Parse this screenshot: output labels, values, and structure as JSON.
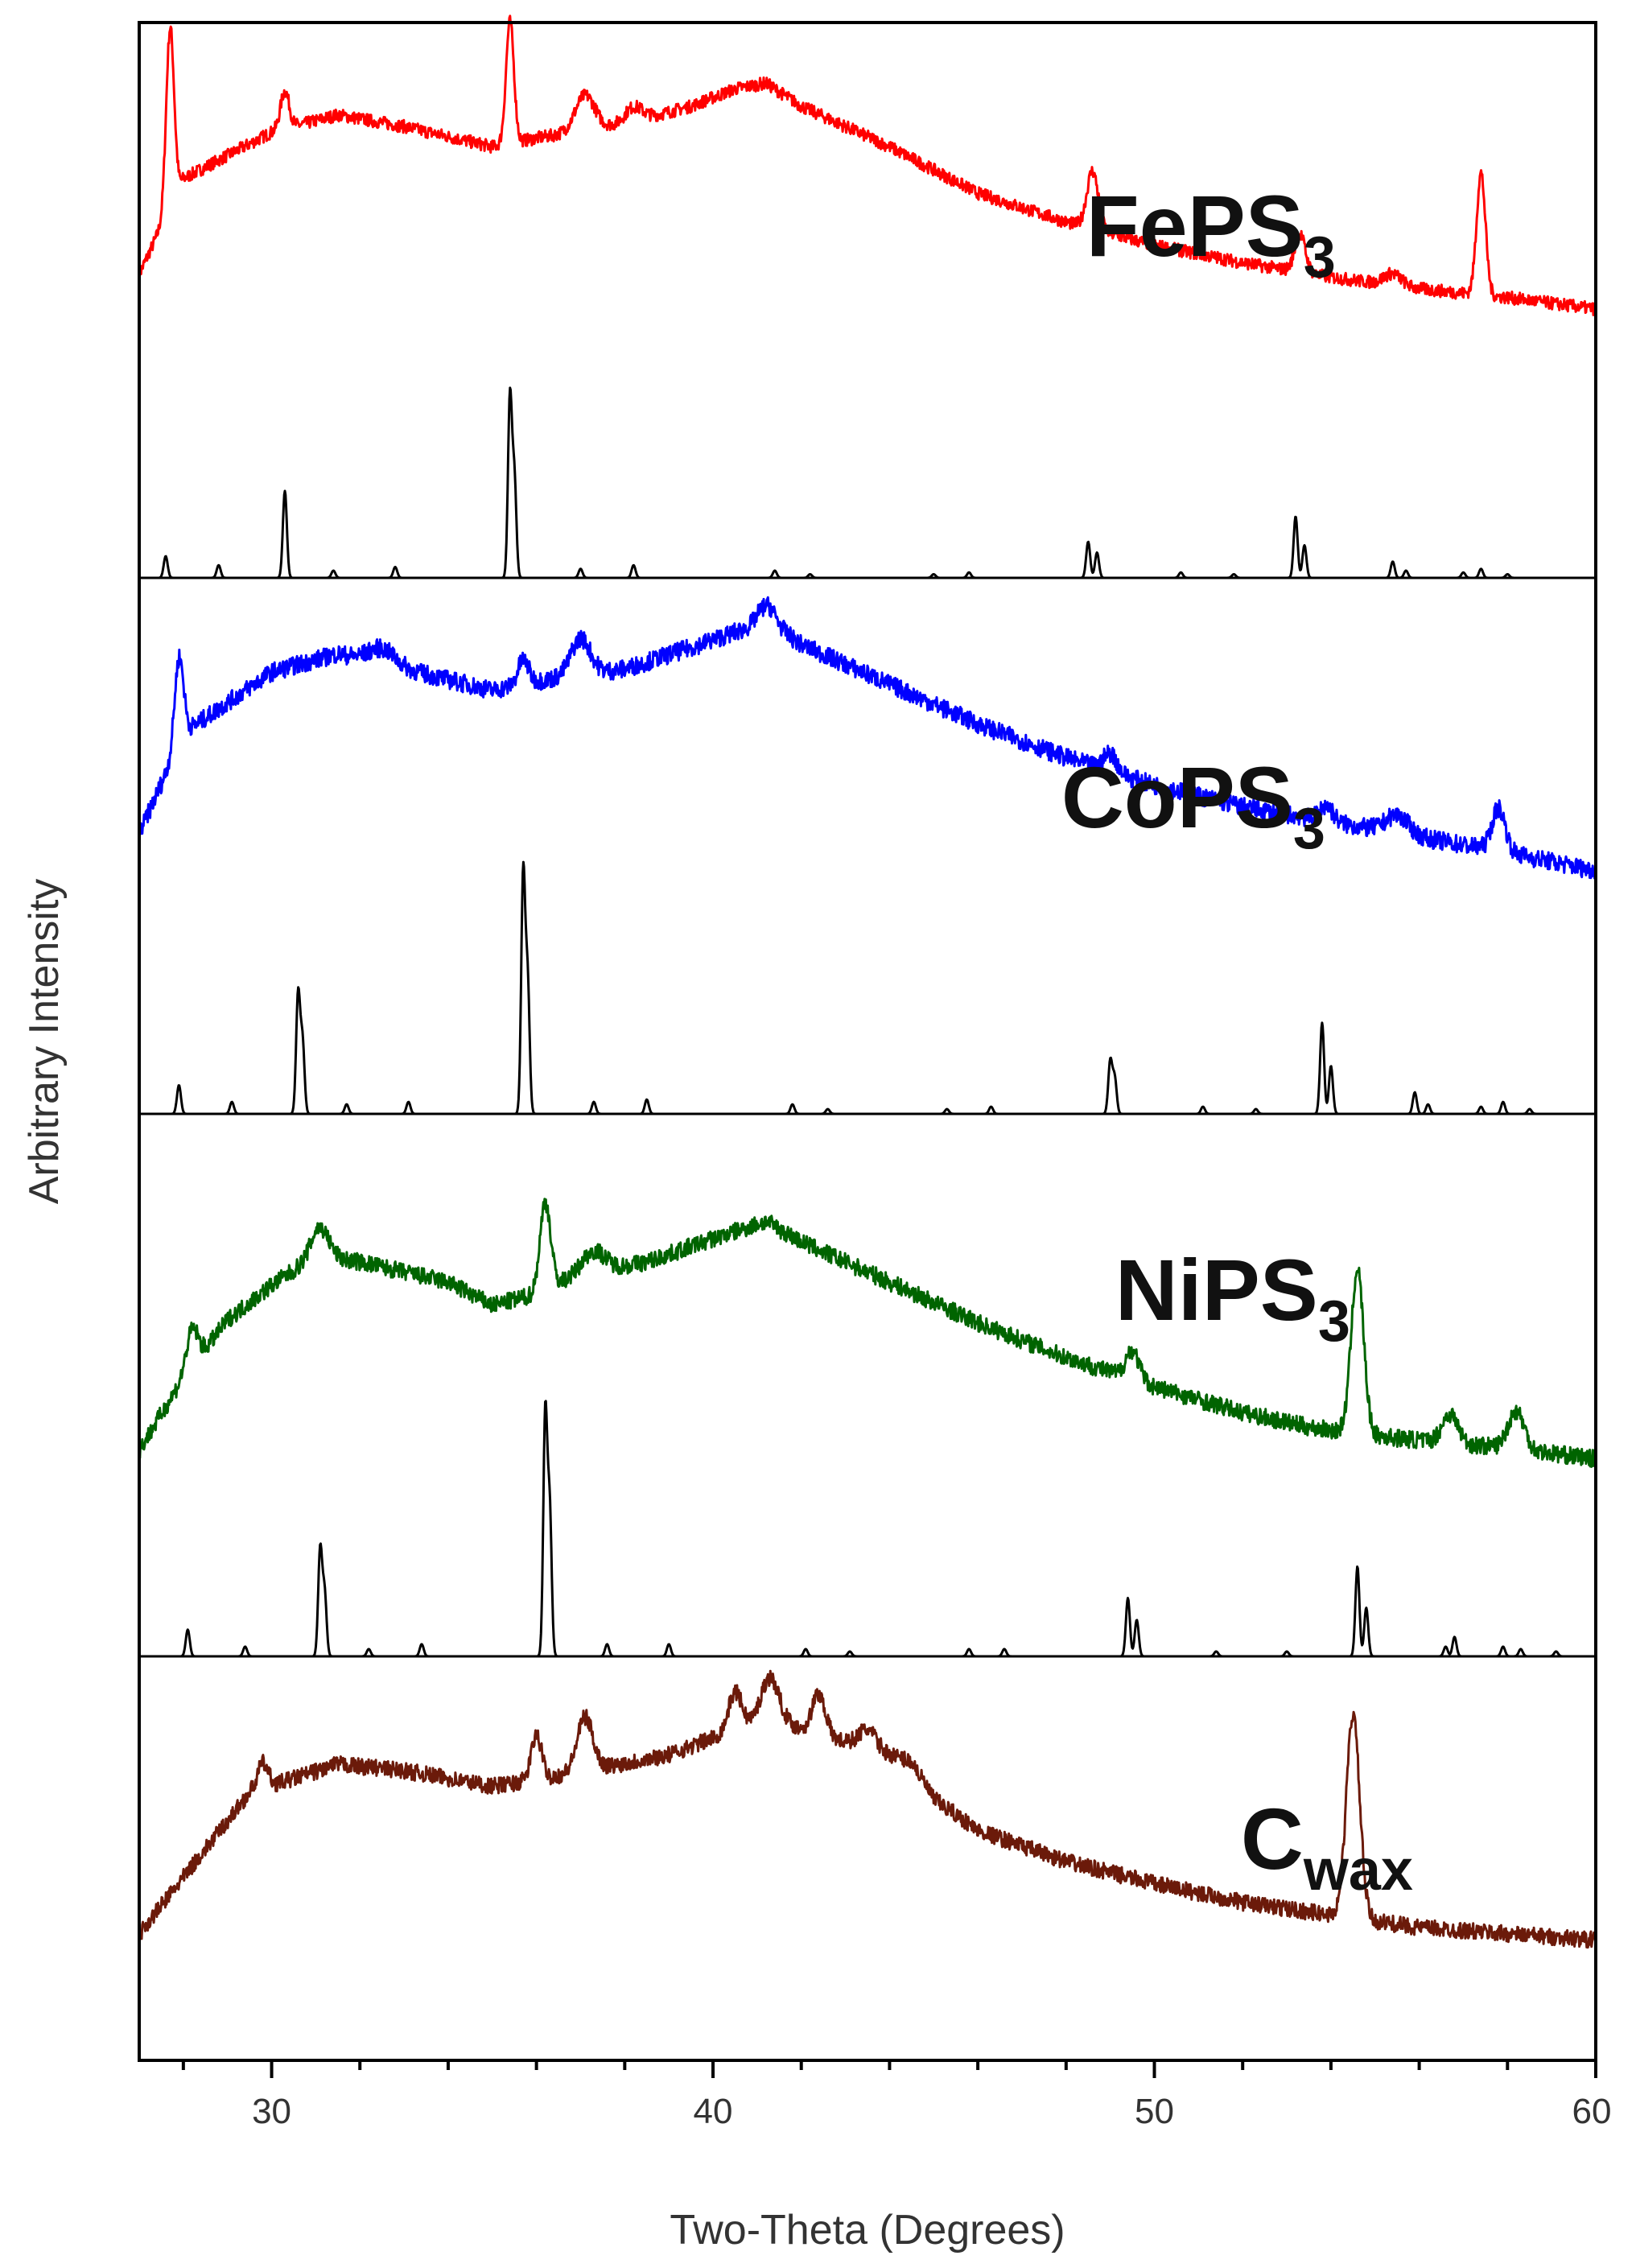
{
  "chart_data": {
    "type": "line",
    "title": "",
    "xlabel": "Two-Theta (Degrees)",
    "ylabel": "Arbitrary Intensity",
    "xlim": [
      27,
      60
    ],
    "x_ticks": [
      "30",
      "40",
      "50",
      "60"
    ],
    "y_ticks": [],
    "grid": false,
    "legend": "none",
    "series": [
      {
        "name": "FePS3",
        "label_main": "FePS",
        "label_sub": "3",
        "color": "#ff0000",
        "kind": "measured",
        "background": [
          [
            27,
            0.22
          ],
          [
            28,
            0.55
          ],
          [
            30,
            0.71
          ],
          [
            31.5,
            0.77
          ],
          [
            33,
            0.73
          ],
          [
            35,
            0.66
          ],
          [
            36,
            0.69
          ],
          [
            38,
            0.74
          ],
          [
            39.5,
            0.8
          ],
          [
            40.5,
            0.86
          ],
          [
            41.2,
            0.88
          ],
          [
            42,
            0.8
          ],
          [
            44,
            0.66
          ],
          [
            46,
            0.5
          ],
          [
            48,
            0.4
          ],
          [
            50,
            0.32
          ],
          [
            52,
            0.26
          ],
          [
            54,
            0.21
          ],
          [
            56,
            0.17
          ],
          [
            58,
            0.14
          ],
          [
            60,
            0.1
          ]
        ],
        "peaks": [
          [
            27.7,
            0.62,
            0.09
          ],
          [
            30.3,
            0.13,
            0.1
          ],
          [
            35.4,
            0.42,
            0.09
          ],
          [
            37.1,
            0.12,
            0.22
          ],
          [
            38.2,
            0.05,
            0.2
          ],
          [
            48.6,
            0.2,
            0.13
          ],
          [
            53.3,
            0.13,
            0.12
          ],
          [
            55.4,
            0.04,
            0.2
          ],
          [
            57.4,
            0.42,
            0.1
          ]
        ],
        "noise": 0.022
      },
      {
        "name": "FePS3 reference",
        "color": "#000000",
        "kind": "reference",
        "peaks": [
          [
            27.6,
            0.12
          ],
          [
            28.8,
            0.07
          ],
          [
            30.3,
            0.48
          ],
          [
            31.4,
            0.04
          ],
          [
            32.8,
            0.06
          ],
          [
            35.4,
            1.0
          ],
          [
            35.5,
            0.55
          ],
          [
            37.0,
            0.05
          ],
          [
            38.2,
            0.07
          ],
          [
            41.4,
            0.04
          ],
          [
            42.2,
            0.02
          ],
          [
            45.0,
            0.02
          ],
          [
            45.8,
            0.03
          ],
          [
            48.5,
            0.2
          ],
          [
            48.7,
            0.14
          ],
          [
            50.6,
            0.03
          ],
          [
            51.8,
            0.02
          ],
          [
            53.2,
            0.34
          ],
          [
            53.4,
            0.18
          ],
          [
            55.4,
            0.09
          ],
          [
            55.7,
            0.04
          ],
          [
            57.0,
            0.03
          ],
          [
            57.4,
            0.05
          ],
          [
            58.0,
            0.02
          ]
        ]
      },
      {
        "name": "CoPS3",
        "label_main": "CoPS",
        "label_sub": "3",
        "color": "#0000ff",
        "kind": "measured",
        "background": [
          [
            27,
            0.22
          ],
          [
            28,
            0.55
          ],
          [
            30,
            0.75
          ],
          [
            31.5,
            0.81
          ],
          [
            33,
            0.76
          ],
          [
            35,
            0.69
          ],
          [
            36,
            0.72
          ],
          [
            38,
            0.76
          ],
          [
            39.5,
            0.83
          ],
          [
            40.5,
            0.88
          ],
          [
            41.3,
            0.91
          ],
          [
            42,
            0.84
          ],
          [
            44,
            0.71
          ],
          [
            46,
            0.58
          ],
          [
            48,
            0.47
          ],
          [
            50,
            0.38
          ],
          [
            52,
            0.31
          ],
          [
            54,
            0.26
          ],
          [
            56,
            0.21
          ],
          [
            58,
            0.16
          ],
          [
            60,
            0.1
          ]
        ],
        "peaks": [
          [
            27.9,
            0.28,
            0.1
          ],
          [
            32.5,
            0.05,
            0.3
          ],
          [
            35.7,
            0.08,
            0.12
          ],
          [
            37.0,
            0.12,
            0.22
          ],
          [
            41.2,
            0.06,
            0.2
          ],
          [
            49.0,
            0.06,
            0.15
          ],
          [
            53.9,
            0.05,
            0.15
          ],
          [
            55.5,
            0.06,
            0.25
          ],
          [
            57.8,
            0.14,
            0.15
          ]
        ],
        "noise": 0.03
      },
      {
        "name": "CoPS3 reference",
        "color": "#000000",
        "kind": "reference",
        "peaks": [
          [
            27.9,
            0.12
          ],
          [
            29.1,
            0.05
          ],
          [
            30.6,
            0.5
          ],
          [
            30.7,
            0.3
          ],
          [
            31.7,
            0.04
          ],
          [
            33.1,
            0.05
          ],
          [
            35.7,
            1.0
          ],
          [
            35.8,
            0.55
          ],
          [
            37.3,
            0.05
          ],
          [
            38.5,
            0.06
          ],
          [
            41.8,
            0.04
          ],
          [
            42.6,
            0.02
          ],
          [
            45.3,
            0.02
          ],
          [
            46.3,
            0.03
          ],
          [
            49.0,
            0.22
          ],
          [
            49.1,
            0.15
          ],
          [
            51.1,
            0.03
          ],
          [
            52.3,
            0.02
          ],
          [
            53.8,
            0.38
          ],
          [
            54.0,
            0.2
          ],
          [
            55.9,
            0.09
          ],
          [
            56.2,
            0.04
          ],
          [
            57.4,
            0.03
          ],
          [
            57.9,
            0.05
          ],
          [
            58.5,
            0.02
          ]
        ]
      },
      {
        "name": "NiPS3",
        "label_main": "NiPS",
        "label_sub": "3",
        "color": "#006400",
        "kind": "measured",
        "background": [
          [
            27,
            0.05
          ],
          [
            28,
            0.3
          ],
          [
            29,
            0.5
          ],
          [
            30,
            0.62
          ],
          [
            31,
            0.72
          ],
          [
            32,
            0.7
          ],
          [
            34,
            0.63
          ],
          [
            35,
            0.55
          ],
          [
            35.8,
            0.58
          ],
          [
            37,
            0.66
          ],
          [
            38.5,
            0.7
          ],
          [
            40,
            0.78
          ],
          [
            41.2,
            0.84
          ],
          [
            42,
            0.77
          ],
          [
            44,
            0.63
          ],
          [
            46,
            0.49
          ],
          [
            48,
            0.37
          ],
          [
            50,
            0.27
          ],
          [
            52,
            0.18
          ],
          [
            53.5,
            0.13
          ],
          [
            55,
            0.1
          ],
          [
            57,
            0.07
          ],
          [
            58,
            0.06
          ],
          [
            60,
            0.02
          ]
        ],
        "peaks": [
          [
            28.2,
            0.13,
            0.13
          ],
          [
            31.1,
            0.1,
            0.2
          ],
          [
            36.2,
            0.3,
            0.12
          ],
          [
            37.3,
            0.07,
            0.25
          ],
          [
            49.5,
            0.1,
            0.15
          ],
          [
            54.6,
            0.57,
            0.14
          ],
          [
            56.7,
            0.1,
            0.18
          ],
          [
            58.2,
            0.13,
            0.18
          ]
        ],
        "noise": 0.03
      },
      {
        "name": "NiPS3 reference",
        "color": "#000000",
        "kind": "reference",
        "peaks": [
          [
            28.1,
            0.11
          ],
          [
            29.4,
            0.04
          ],
          [
            31.1,
            0.44
          ],
          [
            31.2,
            0.26
          ],
          [
            32.2,
            0.03
          ],
          [
            33.4,
            0.05
          ],
          [
            36.2,
            1.0
          ],
          [
            36.3,
            0.6
          ],
          [
            37.6,
            0.05
          ],
          [
            39.0,
            0.05
          ],
          [
            42.1,
            0.03
          ],
          [
            43.1,
            0.02
          ],
          [
            45.8,
            0.03
          ],
          [
            46.6,
            0.03
          ],
          [
            49.4,
            0.24
          ],
          [
            49.6,
            0.15
          ],
          [
            51.4,
            0.02
          ],
          [
            53.0,
            0.02
          ],
          [
            54.6,
            0.37
          ],
          [
            54.8,
            0.2
          ],
          [
            56.6,
            0.04
          ],
          [
            56.8,
            0.08
          ],
          [
            57.9,
            0.04
          ],
          [
            58.3,
            0.03
          ],
          [
            59.1,
            0.02
          ]
        ]
      },
      {
        "name": "Cwax",
        "label_main": "C",
        "label_sub": "wax",
        "color": "#6b1a0a",
        "kind": "measured",
        "background": [
          [
            27,
            0.07
          ],
          [
            28,
            0.25
          ],
          [
            29.5,
            0.52
          ],
          [
            31.5,
            0.61
          ],
          [
            33,
            0.59
          ],
          [
            35,
            0.54
          ],
          [
            36,
            0.56
          ],
          [
            37.5,
            0.6
          ],
          [
            39,
            0.64
          ],
          [
            40.5,
            0.72
          ],
          [
            41.2,
            0.76
          ],
          [
            42.5,
            0.7
          ],
          [
            43.5,
            0.66
          ],
          [
            44.5,
            0.62
          ],
          [
            45,
            0.5
          ],
          [
            46,
            0.4
          ],
          [
            48,
            0.3
          ],
          [
            50,
            0.23
          ],
          [
            52,
            0.17
          ],
          [
            54,
            0.13
          ],
          [
            56,
            0.09
          ],
          [
            58,
            0.07
          ],
          [
            60,
            0.05
          ]
        ],
        "peaks": [
          [
            29.8,
            0.08,
            0.12
          ],
          [
            36.0,
            0.14,
            0.12
          ],
          [
            37.1,
            0.17,
            0.18
          ],
          [
            40.5,
            0.12,
            0.15
          ],
          [
            41.3,
            0.13,
            0.2
          ],
          [
            42.4,
            0.13,
            0.15
          ],
          [
            43.5,
            0.06,
            0.2
          ],
          [
            54.5,
            0.65,
            0.15
          ]
        ],
        "noise": 0.026
      }
    ]
  }
}
